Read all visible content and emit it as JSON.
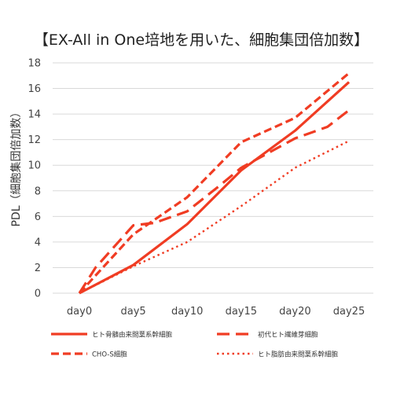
{
  "chart_data": {
    "type": "line",
    "title": "【EX-All in One培地を用いた、細胞集団倍加数】",
    "xlabel": "",
    "ylabel": "PDL（細胞集団倍加数）",
    "categories": [
      "day0",
      "day5",
      "day10",
      "day15",
      "day20",
      "day25"
    ],
    "ylim": [
      0,
      18
    ],
    "yticks": [
      0,
      2,
      4,
      6,
      8,
      10,
      12,
      14,
      16,
      18
    ],
    "grid": true,
    "legend_position": "bottom",
    "color": "#f03c23",
    "series": [
      {
        "name": "ヒト骨髄由来間葉系幹細胞",
        "style": "solid",
        "x": [
          0,
          5,
          10,
          15,
          20,
          25
        ],
        "values": [
          0,
          2.2,
          5.4,
          9.6,
          12.7,
          16.5
        ]
      },
      {
        "name": "初代ヒト繊維芽細胞",
        "style": "long-dash",
        "x": [
          0,
          1.5,
          5,
          7,
          10,
          13,
          15,
          20,
          23,
          25
        ],
        "values": [
          0,
          2.0,
          5.3,
          5.5,
          6.4,
          8.4,
          9.8,
          12.1,
          13.0,
          14.3
        ]
      },
      {
        "name": "CHO-S細胞",
        "style": "dash",
        "x": [
          0,
          5,
          10,
          15,
          20,
          25
        ],
        "values": [
          0,
          4.6,
          7.5,
          11.8,
          13.7,
          17.2
        ]
      },
      {
        "name": "ヒト脂肪由来間葉系幹細胞",
        "style": "dotted",
        "x": [
          0,
          5,
          10,
          15,
          20,
          25
        ],
        "values": [
          0,
          2.1,
          4.0,
          6.8,
          9.8,
          11.9
        ]
      }
    ]
  }
}
